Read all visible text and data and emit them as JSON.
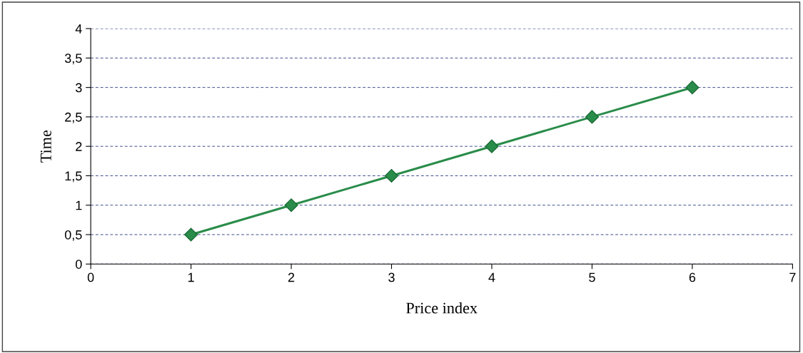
{
  "chart_data": {
    "type": "line",
    "xlabel": "Price index",
    "ylabel": "Time",
    "x": [
      1,
      2,
      3,
      4,
      5,
      6
    ],
    "series": [
      {
        "color": "#2a8c4a",
        "values": [
          0.5,
          1,
          1.5,
          2,
          2.5,
          3
        ]
      }
    ],
    "xlim": [
      0,
      7
    ],
    "xticks": [
      0,
      1,
      2,
      3,
      4,
      5,
      6,
      7
    ],
    "ylim": [
      0,
      4
    ],
    "yticks": [
      0,
      {
        "value": 0.5,
        "label": "0,5"
      },
      1,
      {
        "value": 1.5,
        "label": "1,5"
      },
      2,
      {
        "value": 2.5,
        "label": "2,5"
      },
      3,
      {
        "value": 3.5,
        "label": "3,5"
      },
      4
    ],
    "grid": "y",
    "legend": false,
    "marker": "diamond",
    "line_style": "solid"
  }
}
